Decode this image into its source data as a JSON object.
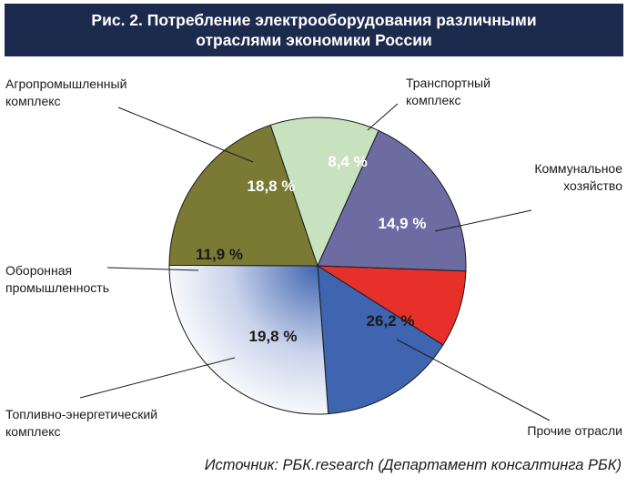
{
  "title": {
    "line1": "Рис. 2. Потребление электрооборудования различными",
    "line2": "отраслями экономики России"
  },
  "source": "Источник: РБК.research (Департамент консалтинга РБК)",
  "chart_data": {
    "type": "pie",
    "unit": "%",
    "slices": [
      {
        "label_lines": [
          "Транспортный",
          "комплекс"
        ],
        "value": 8.4,
        "value_label": "8,4 %",
        "color": "#e8302a",
        "text_color": "#ffffff"
      },
      {
        "label_lines": [
          "Коммунальное",
          "хозяйство"
        ],
        "value": 14.9,
        "value_label": "14,9 %",
        "color": "#3f64b0",
        "text_color": "#ffffff"
      },
      {
        "label_lines": [
          "Прочие отрасли"
        ],
        "value": 26.2,
        "value_label": "26,2 %",
        "color": "#f4f6fb",
        "gradient_to": "#3f64b0",
        "text_color": "#1a1a1a"
      },
      {
        "label_lines": [
          "Топливно-энергетический",
          "комплекс"
        ],
        "value": 19.8,
        "value_label": "19,8 %",
        "color": "#7b7a34",
        "text_color": "#1a1a1a"
      },
      {
        "label_lines": [
          "Оборонная",
          "промышленность"
        ],
        "value": 11.9,
        "value_label": "11,9 %",
        "color": "#c8e2bf",
        "text_color": "#1a1a1a"
      },
      {
        "label_lines": [
          "Агропромышленный",
          "комплекс"
        ],
        "value": 18.8,
        "value_label": "18,8 %",
        "color": "#6c6ca3",
        "text_color": "#ffffff"
      }
    ]
  }
}
